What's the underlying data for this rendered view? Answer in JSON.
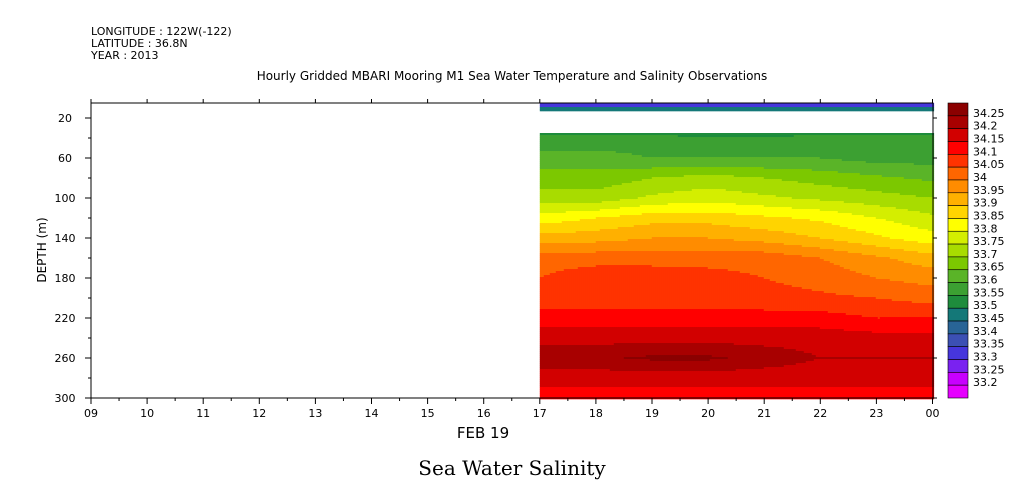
{
  "header": {
    "longitude": "LONGITUDE : 122W(-122)",
    "latitude": "LATITUDE : 36.8N",
    "year": "YEAR : 2013"
  },
  "chart_data": {
    "type": "heatmap",
    "title": "Hourly Gridded MBARI Mooring M1 Sea Water Temperature and Salinity Observations",
    "xlabel": "FEB 19",
    "ylabel": "DEPTH (m)",
    "bottom_title": "Sea Water Salinity",
    "x_ticks": [
      "09",
      "10",
      "11",
      "12",
      "13",
      "14",
      "15",
      "16",
      "17",
      "18",
      "19",
      "20",
      "21",
      "22",
      "23",
      "00"
    ],
    "y_ticks": [
      20,
      60,
      100,
      140,
      180,
      220,
      260,
      300
    ],
    "ylim": [
      300,
      5
    ],
    "data_start_hour": 17,
    "x_hours": [
      17,
      18,
      19,
      20,
      21,
      22,
      23,
      24
    ],
    "depths": [
      10,
      40,
      60,
      80,
      100,
      120,
      140,
      160,
      180,
      200,
      220,
      240,
      260,
      280,
      300
    ],
    "values": [
      [
        33.4,
        33.4,
        33.4,
        33.4,
        33.4,
        33.4,
        33.4,
        33.4
      ],
      [
        33.57,
        33.57,
        33.57,
        33.55,
        33.55,
        33.57,
        33.57,
        33.57
      ],
      [
        33.62,
        33.62,
        33.6,
        33.6,
        33.6,
        33.6,
        33.58,
        33.58
      ],
      [
        33.67,
        33.67,
        33.7,
        33.72,
        33.7,
        33.68,
        33.66,
        33.64
      ],
      [
        33.72,
        33.72,
        33.76,
        33.78,
        33.76,
        33.74,
        33.72,
        33.7
      ],
      [
        33.82,
        33.85,
        33.88,
        33.88,
        33.86,
        33.84,
        33.8,
        33.76
      ],
      [
        33.92,
        33.93,
        33.95,
        33.95,
        33.93,
        33.9,
        33.86,
        33.82
      ],
      [
        34.03,
        34.03,
        34.03,
        34.03,
        34.03,
        34.0,
        33.96,
        33.92
      ],
      [
        34.05,
        34.08,
        34.08,
        34.07,
        34.05,
        34.03,
        34.0,
        33.98
      ],
      [
        34.08,
        34.08,
        34.08,
        34.08,
        34.07,
        34.06,
        34.05,
        34.03
      ],
      [
        34.12,
        34.12,
        34.12,
        34.12,
        34.12,
        34.12,
        34.1,
        34.1
      ],
      [
        34.18,
        34.18,
        34.18,
        34.18,
        34.18,
        34.18,
        34.17,
        34.17
      ],
      [
        34.23,
        34.24,
        34.26,
        34.26,
        34.23,
        34.2,
        34.2,
        34.2
      ],
      [
        34.17,
        34.17,
        34.17,
        34.17,
        34.17,
        34.17,
        34.17,
        34.17
      ],
      [
        34.12,
        34.12,
        34.12,
        34.12,
        34.12,
        34.12,
        34.12,
        34.12
      ]
    ],
    "gap_depth_range": [
      14,
      35
    ],
    "colorbar": {
      "labels": [
        "34.25",
        "34.2",
        "34.15",
        "34.1",
        "34.05",
        "34",
        "33.95",
        "33.9",
        "33.85",
        "33.8",
        "33.75",
        "33.7",
        "33.65",
        "33.6",
        "33.55",
        "33.5",
        "33.45",
        "33.4",
        "33.35",
        "33.3",
        "33.25",
        "33.2"
      ],
      "colors": [
        "#8b0000",
        "#a80000",
        "#d20000",
        "#ff0000",
        "#ff3300",
        "#ff6600",
        "#ff8c00",
        "#ffb000",
        "#ffd400",
        "#ffff00",
        "#d4ee00",
        "#a8dc00",
        "#7cc800",
        "#5ab428",
        "#3ca032",
        "#1e8c3c",
        "#147878",
        "#286496",
        "#3c50b4",
        "#4636dc",
        "#7a22f0",
        "#c800ff",
        "#e600ff"
      ]
    }
  }
}
